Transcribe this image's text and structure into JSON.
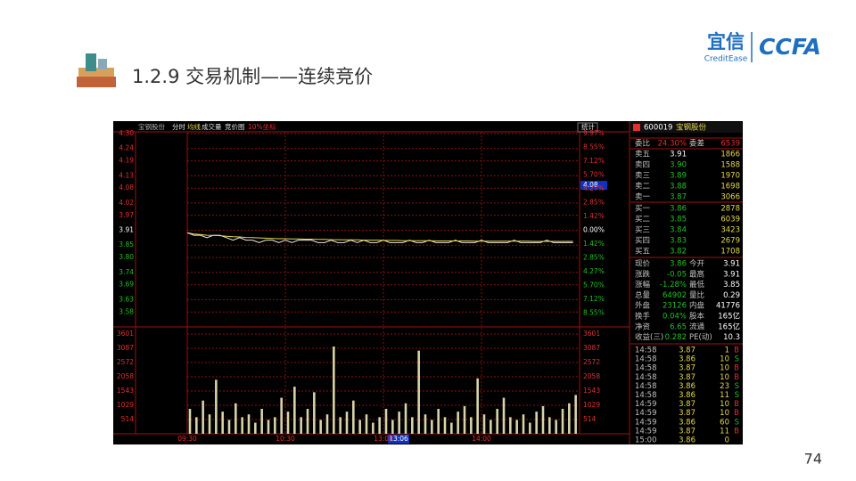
{
  "header": {
    "title": "1.2.9 交易机制——连续竞价",
    "logo_cn": "宜信",
    "logo_en": "CreditEase",
    "logo_ccfa": "CCFA"
  },
  "page_number": "74",
  "toolbar": {
    "stock": "宝钢股份",
    "items": [
      "成交量",
      "竞价图"
    ],
    "scale": "10%坐标",
    "stats": "统计"
  },
  "cursor": {
    "price": "4.08",
    "time": "13:06"
  },
  "chart_data": [
    {
      "type": "line",
      "x": [
        0,
        4,
        8,
        12,
        16,
        20,
        24,
        28,
        32,
        36,
        40,
        44,
        48,
        52,
        56,
        60,
        64,
        68,
        72,
        76,
        80,
        84,
        88,
        92,
        96,
        100,
        104,
        108,
        112,
        116,
        120,
        124,
        128,
        132,
        136,
        140,
        144,
        148,
        152,
        156,
        160,
        164,
        168,
        172,
        176,
        180,
        184,
        188,
        192,
        196,
        200,
        204,
        208,
        212,
        216,
        220,
        224,
        228,
        232,
        236
      ],
      "xlim": [
        0,
        240
      ],
      "xticks": [
        {
          "value": 0,
          "label": "09:30"
        },
        {
          "value": 60,
          "label": "10:30"
        },
        {
          "value": 120,
          "label": "13:00"
        },
        {
          "value": 180,
          "label": "14:00"
        }
      ],
      "ylim": [
        3.52,
        4.3
      ],
      "yticks": [
        {
          "value": 4.3,
          "label": "4.30"
        },
        4.24,
        4.19,
        4.13,
        4.08,
        4.02,
        3.97,
        3.91,
        3.85,
        {
          "value": 3.8,
          "label": "3.80"
        },
        3.74,
        3.69,
        3.63,
        3.58
      ],
      "y2lim": [
        -9.97,
        9.97
      ],
      "y2ticks": [
        {
          "value": 9.97,
          "label": "9.97%"
        },
        {
          "value": 8.55,
          "label": "8.55%"
        },
        {
          "value": 7.12,
          "label": "7.12%"
        },
        {
          "value": 5.7,
          "label": "5.70%"
        },
        {
          "value": 4.27,
          "label": "4.27%"
        },
        {
          "value": 2.85,
          "label": "2.85%"
        },
        {
          "value": 1.42,
          "label": "1.42%"
        },
        {
          "value": 0,
          "label": "0.00%"
        },
        {
          "value": -1.42,
          "label": "1.42%"
        },
        {
          "value": -2.85,
          "label": "2.85%"
        },
        {
          "value": -4.27,
          "label": "4.27%"
        },
        {
          "value": -5.7,
          "label": "5.70%"
        },
        {
          "value": -7.12,
          "label": "7.12%"
        },
        {
          "value": -8.55,
          "label": "8.55%"
        }
      ],
      "grid": true,
      "series": [
        {
          "name": "分时",
          "color": "#e8e8e8",
          "values": [
            3.9,
            3.89,
            3.89,
            3.88,
            3.89,
            3.89,
            3.88,
            3.87,
            3.88,
            3.87,
            3.87,
            3.86,
            3.87,
            3.87,
            3.86,
            3.87,
            3.86,
            3.87,
            3.87,
            3.87,
            3.86,
            3.86,
            3.87,
            3.86,
            3.86,
            3.87,
            3.86,
            3.87,
            3.86,
            3.86,
            3.87,
            3.86,
            3.86,
            3.86,
            3.87,
            3.86,
            3.86,
            3.87,
            3.86,
            3.86,
            3.86,
            3.87,
            3.86,
            3.86,
            3.86,
            3.87,
            3.86,
            3.86,
            3.86,
            3.86,
            3.87,
            3.86,
            3.86,
            3.86,
            3.86,
            3.87,
            3.86,
            3.86,
            3.86,
            3.86
          ]
        },
        {
          "name": "均线",
          "color": "#e6d84a",
          "values": [
            3.9,
            3.895,
            3.893,
            3.89,
            3.889,
            3.888,
            3.886,
            3.884,
            3.883,
            3.881,
            3.88,
            3.879,
            3.878,
            3.877,
            3.876,
            3.876,
            3.875,
            3.875,
            3.874,
            3.874,
            3.873,
            3.873,
            3.872,
            3.872,
            3.871,
            3.871,
            3.871,
            3.87,
            3.87,
            3.87,
            3.869,
            3.869,
            3.869,
            3.868,
            3.868,
            3.868,
            3.868,
            3.868,
            3.867,
            3.867,
            3.867,
            3.867,
            3.867,
            3.867,
            3.866,
            3.866,
            3.866,
            3.866,
            3.866,
            3.866,
            3.866,
            3.866,
            3.866,
            3.865,
            3.865,
            3.865,
            3.865,
            3.865,
            3.865,
            3.865
          ]
        }
      ]
    },
    {
      "type": "bar",
      "x": [
        0,
        4,
        8,
        12,
        16,
        20,
        24,
        28,
        32,
        36,
        40,
        44,
        48,
        52,
        56,
        60,
        64,
        68,
        72,
        76,
        80,
        84,
        88,
        92,
        96,
        100,
        104,
        108,
        112,
        116,
        120,
        124,
        128,
        132,
        136,
        140,
        144,
        148,
        152,
        156,
        160,
        164,
        168,
        172,
        176,
        180,
        184,
        188,
        192,
        196,
        200,
        204,
        208,
        212,
        216,
        220,
        224,
        228,
        232,
        236
      ],
      "xlim": [
        0,
        240
      ],
      "ylim": [
        0,
        3601
      ],
      "yticks": [
        3601,
        3087,
        2572,
        2058,
        1543,
        1029,
        514
      ],
      "color": "#d8d4a8",
      "values": [
        900,
        600,
        1200,
        700,
        1950,
        800,
        500,
        1100,
        600,
        700,
        400,
        900,
        500,
        600,
        1300,
        800,
        1700,
        600,
        900,
        1500,
        500,
        700,
        3150,
        600,
        800,
        1200,
        500,
        700,
        400,
        600,
        900,
        500,
        800,
        1100,
        600,
        3000,
        700,
        500,
        900,
        600,
        400,
        800,
        1000,
        600,
        2000,
        700,
        500,
        900,
        1300,
        600,
        500,
        700,
        400,
        800,
        1000,
        600,
        500,
        900,
        1100,
        1400
      ]
    }
  ],
  "quote_panel": {
    "code": "600019",
    "name": "宝钢股份",
    "ratio": [
      "委比",
      "24.30%",
      "委差",
      "6539"
    ],
    "book": [
      [
        "卖五",
        "3.91",
        "1866"
      ],
      [
        "卖四",
        "3.90",
        "1588"
      ],
      [
        "卖三",
        "3.89",
        "1970"
      ],
      [
        "卖二",
        "3.88",
        "1698"
      ],
      [
        "卖一",
        "3.87",
        "3066"
      ],
      [
        "买一",
        "3.86",
        "2878"
      ],
      [
        "买二",
        "3.85",
        "6039"
      ],
      [
        "买三",
        "3.84",
        "3423"
      ],
      [
        "买四",
        "3.83",
        "2679"
      ],
      [
        "买五",
        "3.82",
        "1708"
      ]
    ],
    "stats": [
      [
        "现价",
        "3.86",
        "今开",
        "3.91"
      ],
      [
        "涨跌",
        "-0.05",
        "最高",
        "3.91"
      ],
      [
        "涨幅",
        "-1.28%",
        "最低",
        "3.85"
      ],
      [
        "总量",
        "64902",
        "量比",
        "0.29"
      ],
      [
        "外盘",
        "23126",
        "内盘",
        "41776"
      ],
      [
        "换手",
        "0.04%",
        "股本",
        "165亿"
      ],
      [
        "净资",
        "6.65",
        "流通",
        "165亿"
      ],
      [
        "收益(三)",
        "0.282",
        "PE(动)",
        "10.3"
      ]
    ],
    "trades": [
      [
        "14:58",
        "3.87",
        "1",
        "B"
      ],
      [
        "14:58",
        "3.86",
        "10",
        "S"
      ],
      [
        "14:58",
        "3.87",
        "10",
        "B"
      ],
      [
        "14:58",
        "3.87",
        "10",
        "B"
      ],
      [
        "14:58",
        "3.86",
        "23",
        "S"
      ],
      [
        "14:58",
        "3.86",
        "11",
        "S"
      ],
      [
        "14:59",
        "3.87",
        "10",
        "B"
      ],
      [
        "14:59",
        "3.87",
        "10",
        "B"
      ],
      [
        "14:59",
        "3.86",
        "60",
        "S"
      ],
      [
        "14:59",
        "3.87",
        "11",
        "B"
      ],
      [
        "15:00",
        "3.86",
        "0"
      ]
    ]
  }
}
